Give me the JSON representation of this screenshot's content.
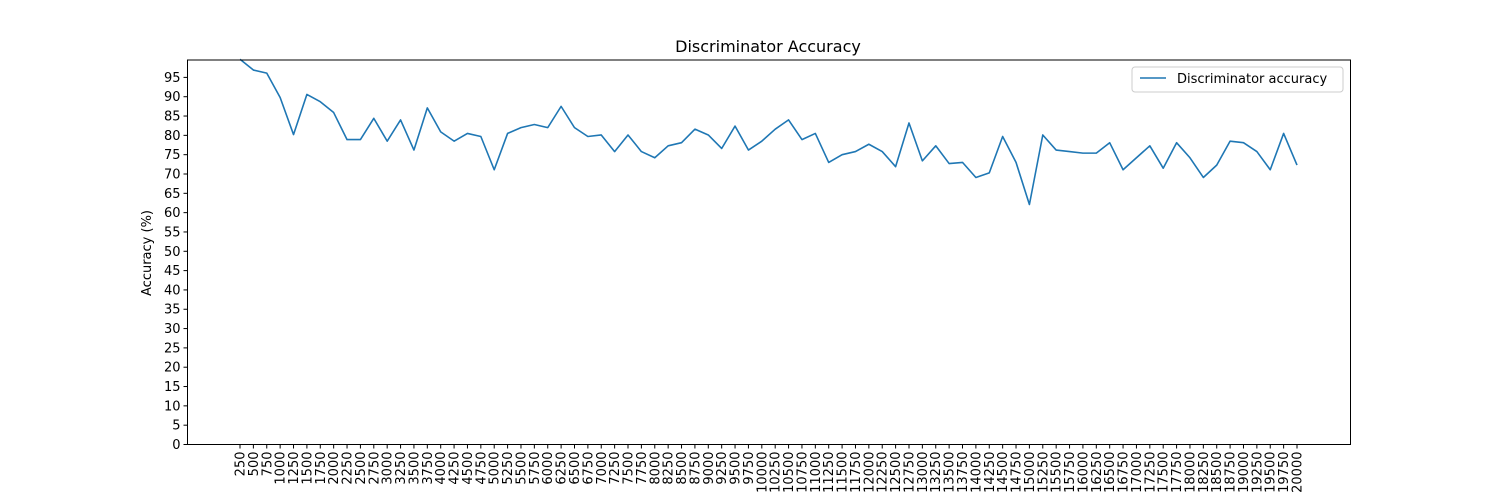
{
  "chart_data": {
    "type": "line",
    "title": "Discriminator Accuracy",
    "xlabel": "",
    "ylabel": "Accuracy (%)",
    "ylim": [
      0,
      99.5
    ],
    "yticks": [
      0,
      5,
      10,
      15,
      20,
      25,
      30,
      35,
      40,
      45,
      50,
      55,
      60,
      65,
      70,
      75,
      80,
      85,
      90,
      95
    ],
    "grid": false,
    "legend_position": "top-right",
    "colors": {
      "series": "#1f77b4",
      "axes": "#000000",
      "legend_border": "#cccccc"
    },
    "x": [
      "250",
      "500",
      "750",
      "1000",
      "1250",
      "1500",
      "1750",
      "2000",
      "2250",
      "2500",
      "2750",
      "3000",
      "3250",
      "3500",
      "3750",
      "4000",
      "4250",
      "4500",
      "4750",
      "5000",
      "5250",
      "5500",
      "5750",
      "6000",
      "6250",
      "6500",
      "6750",
      "7000",
      "7250",
      "7500",
      "7750",
      "8000",
      "8250",
      "8500",
      "8750",
      "9000",
      "9250",
      "9500",
      "9750",
      "10000",
      "10250",
      "10500",
      "10750",
      "11000",
      "11250",
      "11500",
      "11750",
      "12000",
      "12250",
      "12500",
      "12750",
      "13000",
      "13250",
      "13500",
      "13750",
      "14000",
      "14250",
      "14500",
      "14750",
      "15000",
      "15250",
      "15500",
      "15750",
      "16000",
      "16250",
      "16500",
      "16750",
      "17000",
      "17250",
      "17500",
      "17750",
      "18000",
      "18250",
      "18500",
      "18750",
      "19000",
      "19250",
      "19500",
      "19750",
      "20000"
    ],
    "series": [
      {
        "name": "Discriminator accuracy",
        "values": [
          99.7,
          96.9,
          96.1,
          89.8,
          80.2,
          90.6,
          88.7,
          85.9,
          78.9,
          78.9,
          84.4,
          78.5,
          84.0,
          76.2,
          87.1,
          80.9,
          78.5,
          80.5,
          79.7,
          71.1,
          80.5,
          82.0,
          82.8,
          82.0,
          87.5,
          82.0,
          79.7,
          80.1,
          75.8,
          80.1,
          75.8,
          74.2,
          77.3,
          78.1,
          81.6,
          80.1,
          76.6,
          82.4,
          76.2,
          78.5,
          81.6,
          84.0,
          78.9,
          80.5,
          73.0,
          75.0,
          75.8,
          77.7,
          75.8,
          71.9,
          83.2,
          73.4,
          77.3,
          72.7,
          73.0,
          69.1,
          70.3,
          79.7,
          73.0,
          62.1,
          80.1,
          76.2,
          75.8,
          75.4,
          75.4,
          78.1,
          71.1,
          74.2,
          77.3,
          71.5,
          78.1,
          74.2,
          69.1,
          72.3,
          78.5,
          78.1,
          75.8,
          71.1,
          80.5,
          72.3
        ]
      }
    ]
  }
}
